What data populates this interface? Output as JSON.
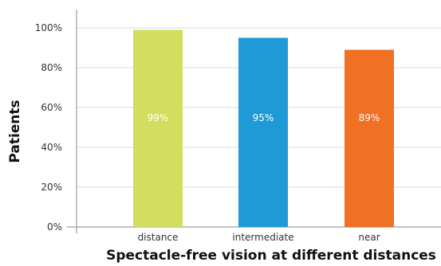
{
  "chart_data": {
    "type": "bar",
    "title": "",
    "xlabel": "Spectacle-free vision at different distances",
    "ylabel": "Patients",
    "categories": [
      "distance",
      "intermediate",
      "near"
    ],
    "values": [
      99,
      95,
      89
    ],
    "data_labels": [
      "99%",
      "95%",
      "89%"
    ],
    "colors": [
      "#d3de5e",
      "#1e9bd7",
      "#f07024"
    ],
    "ylim": [
      0,
      100
    ],
    "yticks": [
      0,
      20,
      40,
      60,
      80,
      100
    ],
    "ytick_labels": [
      "0%",
      "20%",
      "40%",
      "60%",
      "80%",
      "100%"
    ],
    "grid": true,
    "legend": "none"
  }
}
